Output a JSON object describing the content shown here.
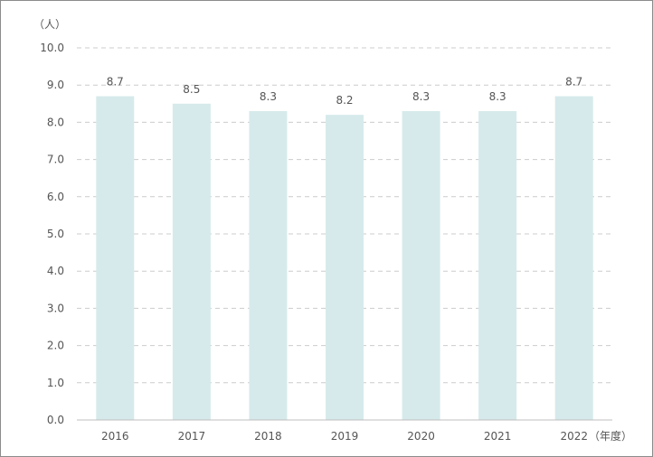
{
  "chart_data": {
    "type": "bar",
    "categories": [
      "2016",
      "2017",
      "2018",
      "2019",
      "2020",
      "2021",
      "2022"
    ],
    "values": [
      8.7,
      8.5,
      8.3,
      8.2,
      8.3,
      8.3,
      8.7
    ],
    "data_labels": [
      "8.7",
      "8.5",
      "8.3",
      "8.2",
      "8.3",
      "8.3",
      "8.7"
    ],
    "y_ticks": [
      "0.0",
      "1.0",
      "2.0",
      "3.0",
      "4.0",
      "5.0",
      "6.0",
      "7.0",
      "8.0",
      "9.0",
      "10.0"
    ],
    "title": "",
    "ylabel": "（人）",
    "xlabel": "（年度）",
    "ylim": [
      0,
      10
    ],
    "grid": true,
    "legend": "none",
    "bar_color": "#d6eaeb",
    "grid_color": "#cccccc",
    "axis_color": "#bfbfbf",
    "text_color": "#555555"
  }
}
